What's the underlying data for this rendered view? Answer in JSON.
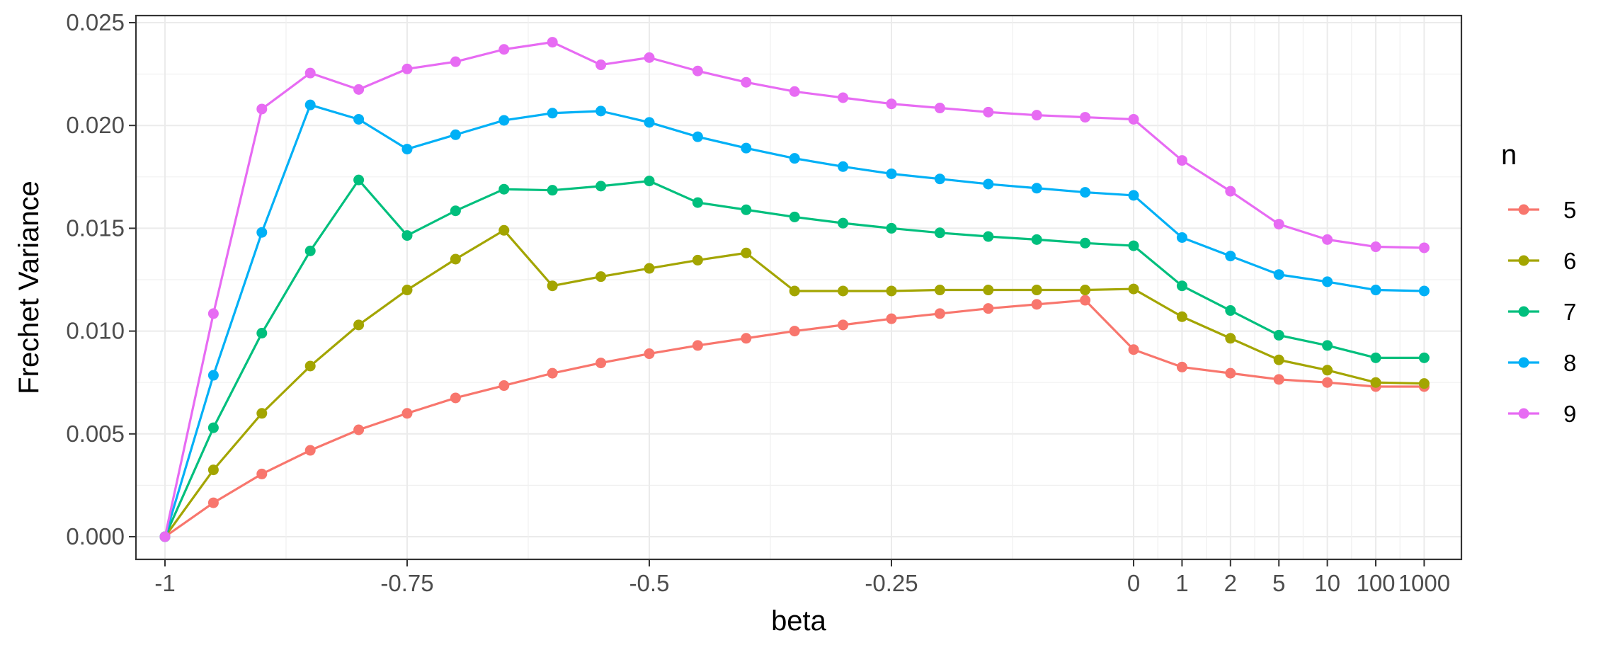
{
  "chart_data": {
    "type": "line",
    "xlabel": "beta",
    "ylabel": "Frechet Variance",
    "ylim": [
      0,
      0.025
    ],
    "y_ticks": [
      "0.000",
      "0.005",
      "0.010",
      "0.015",
      "0.020",
      "0.025"
    ],
    "y_tick_values": [
      0,
      0.005,
      0.01,
      0.015,
      0.02,
      0.025
    ],
    "x": [
      "-1",
      "-0.95",
      "-0.9",
      "-0.85",
      "-0.8",
      "-0.75",
      "-0.7",
      "-0.65",
      "-0.6",
      "-0.55",
      "-0.5",
      "-0.45",
      "-0.4",
      "-0.35",
      "-0.3",
      "-0.25",
      "-0.2",
      "-0.15",
      "-0.1",
      "-0.05",
      "0",
      "1",
      "2",
      "5",
      "10",
      "100",
      "1000"
    ],
    "x_tick_labels": [
      "-1",
      "-0.75",
      "-0.5",
      "-0.25",
      "0",
      "1",
      "2",
      "5",
      "10",
      "100",
      "1000"
    ],
    "x_tick_positions": [
      0,
      5,
      10,
      15,
      20,
      21,
      22,
      23,
      24,
      25,
      26
    ],
    "grid": true,
    "legend": {
      "title": "n",
      "placement": "right"
    },
    "series": [
      {
        "name": "5",
        "color": "#F8766D",
        "values": [
          0,
          0.00165,
          0.00305,
          0.0042,
          0.0052,
          0.006,
          0.00675,
          0.00735,
          0.00795,
          0.00845,
          0.0089,
          0.0093,
          0.00965,
          0.01,
          0.0103,
          0.0106,
          0.01085,
          0.0111,
          0.0113,
          0.0115,
          0.0091,
          0.00825,
          0.00795,
          0.00765,
          0.0075,
          0.0073,
          0.0073
        ]
      },
      {
        "name": "6",
        "color": "#A3A500",
        "values": [
          0,
          0.00325,
          0.006,
          0.0083,
          0.0103,
          0.012,
          0.0135,
          0.0149,
          0.0122,
          0.01265,
          0.01305,
          0.01345,
          0.0138,
          0.01195,
          0.01195,
          0.01195,
          0.012,
          0.012,
          0.012,
          0.012,
          0.01205,
          0.0107,
          0.00965,
          0.0086,
          0.0081,
          0.0075,
          0.00745
        ]
      },
      {
        "name": "7",
        "color": "#00BF7D",
        "values": [
          0,
          0.0053,
          0.0099,
          0.0139,
          0.01735,
          0.01465,
          0.01585,
          0.0169,
          0.01685,
          0.01705,
          0.0173,
          0.01625,
          0.0159,
          0.01555,
          0.01525,
          0.015,
          0.01478,
          0.0146,
          0.01445,
          0.01428,
          0.01415,
          0.0122,
          0.011,
          0.0098,
          0.0093,
          0.0087,
          0.0087
        ]
      },
      {
        "name": "8",
        "color": "#00B0F6",
        "values": [
          0,
          0.00785,
          0.0148,
          0.021,
          0.0203,
          0.01885,
          0.01955,
          0.02025,
          0.0206,
          0.0207,
          0.02015,
          0.01945,
          0.0189,
          0.0184,
          0.018,
          0.01765,
          0.0174,
          0.01715,
          0.01695,
          0.01675,
          0.0166,
          0.01455,
          0.01365,
          0.01275,
          0.0124,
          0.012,
          0.01195
        ]
      },
      {
        "name": "9",
        "color": "#E76BF3",
        "values": [
          0,
          0.01085,
          0.0208,
          0.02255,
          0.02175,
          0.02275,
          0.0231,
          0.0237,
          0.02405,
          0.02295,
          0.0233,
          0.02265,
          0.0221,
          0.02165,
          0.02135,
          0.02105,
          0.02085,
          0.02065,
          0.0205,
          0.0204,
          0.0203,
          0.0183,
          0.0168,
          0.0152,
          0.01445,
          0.0141,
          0.01405
        ]
      }
    ]
  }
}
